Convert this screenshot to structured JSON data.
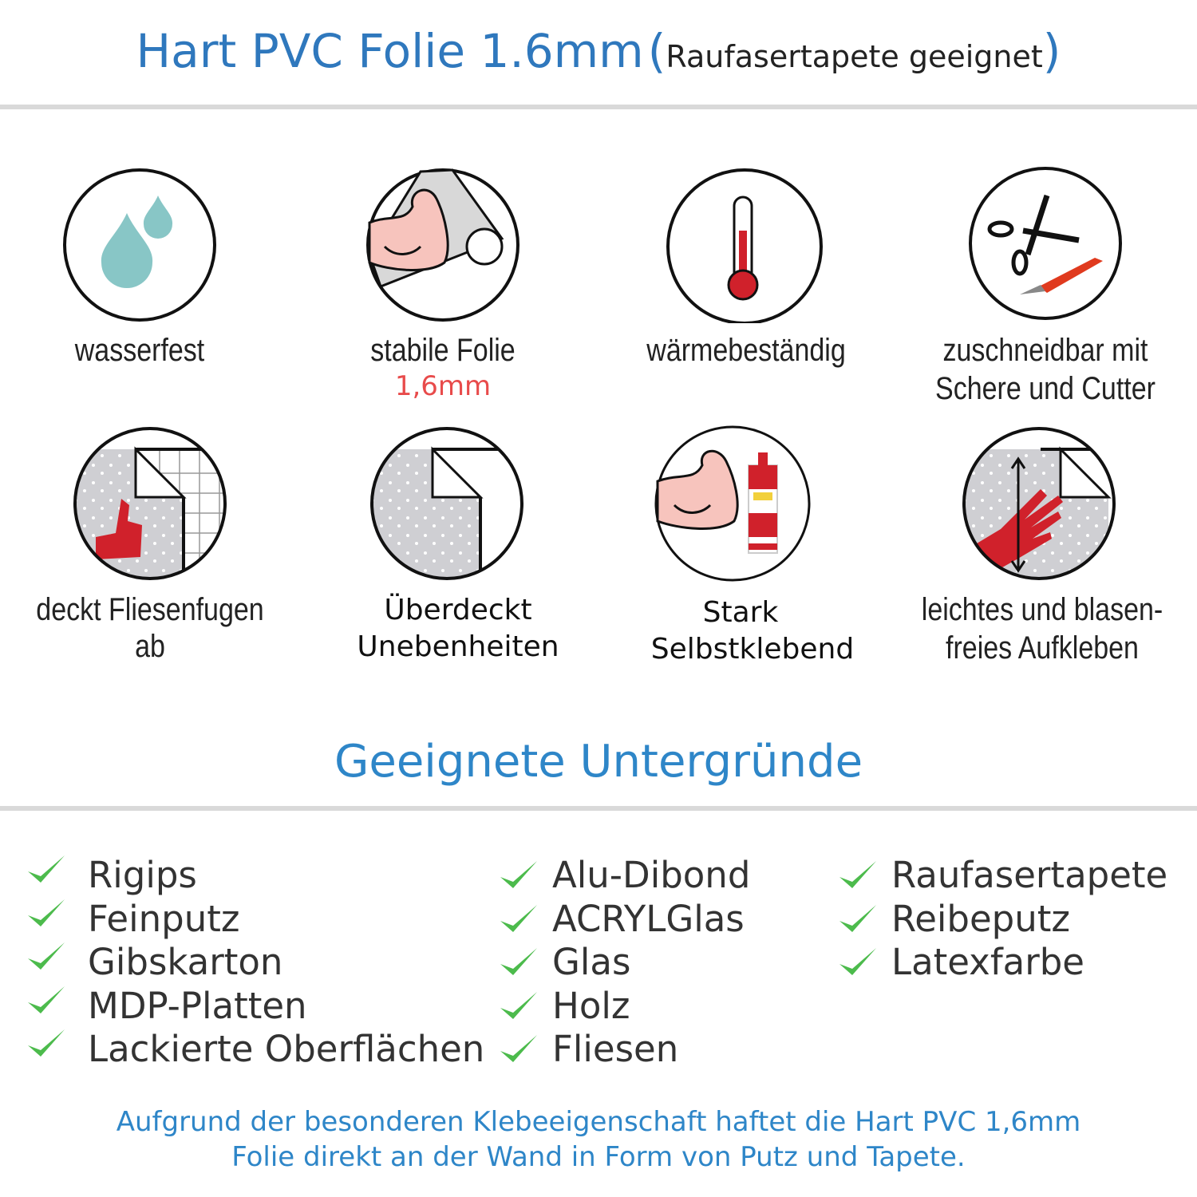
{
  "header": {
    "title": "Hart PVC Folie 1.6mm",
    "paren_open": "(",
    "subtitle": "Raufasertapete geeignet",
    "paren_close": ")",
    "accent_color": "#2f78bd"
  },
  "features": [
    {
      "icon": "water-drops-icon",
      "label": "wasserfest"
    },
    {
      "icon": "strong-foil-icon",
      "label": "stabile Folie",
      "sub": "1,6mm",
      "sub_color": "#e84b4b"
    },
    {
      "icon": "thermometer-icon",
      "label": "wärmebeständig"
    },
    {
      "icon": "scissors-cutter-icon",
      "label_line1": "zuschneidbar mit",
      "label_line2": "Schere und Cutter"
    },
    {
      "icon": "tile-cover-icon",
      "label": "deckt Fliesenfugen ab"
    },
    {
      "icon": "uneven-surface-icon",
      "label_line1": "Überdeckt",
      "label_line2": "Unebenheiten"
    },
    {
      "icon": "strong-adhesive-icon",
      "label_line1": "Stark",
      "label_line2": "Selbstklebend"
    },
    {
      "icon": "hand-apply-icon",
      "label_line1": "leichtes und blasen-",
      "label_line2": "freies Aufkleben"
    }
  ],
  "surfaces": {
    "title": "Geeignete Untergründe",
    "check_color": "#4cbb4c",
    "col1": [
      "Rigips",
      "Feinputz",
      "Gibskarton",
      "MDP-Platten",
      "Lackierte Oberflächen"
    ],
    "col2": [
      "Alu-Dibond",
      "ACRYLGlas",
      "Glas",
      "Holz",
      "Fliesen"
    ],
    "col3": [
      "Raufasertapete",
      "Reibeputz",
      "Latexfarbe"
    ]
  },
  "footer": {
    "line1": "Aufgrund der besonderen Klebeeigenschaft haftet die Hart PVC 1,6mm",
    "line2": "Folie direkt an der Wand in Form von Putz und Tapete."
  }
}
